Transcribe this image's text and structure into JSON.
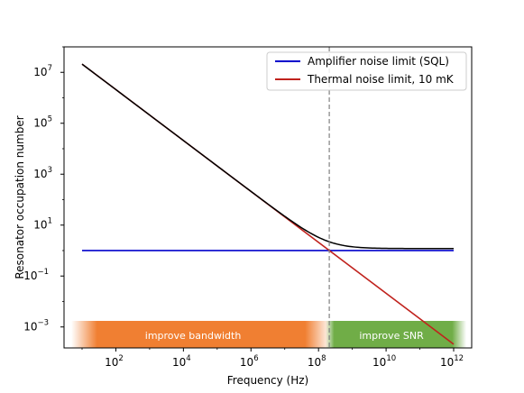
{
  "chart_data": {
    "type": "line",
    "xlabel": "Frequency (Hz)",
    "ylabel": "Resonator occupation number",
    "xscale": "log",
    "yscale": "log",
    "xlim": [
      10.0,
      1000000000000.0
    ],
    "ylim": [
      0.00015,
      100000000.0
    ],
    "x_ticks": [
      {
        "value": 100.0,
        "base": "10",
        "exp": "2"
      },
      {
        "value": 10000.0,
        "base": "10",
        "exp": "4"
      },
      {
        "value": 1000000.0,
        "base": "10",
        "exp": "6"
      },
      {
        "value": 100000000.0,
        "base": "10",
        "exp": "8"
      },
      {
        "value": 10000000000.0,
        "base": "10",
        "exp": "10"
      },
      {
        "value": 1000000000000.0,
        "base": "10",
        "exp": "12"
      }
    ],
    "y_ticks": [
      {
        "value": 0.001,
        "base": "10",
        "exp": "−3"
      },
      {
        "value": 0.1,
        "base": "10",
        "exp": "−1"
      },
      {
        "value": 10.0,
        "base": "10",
        "exp": "1"
      },
      {
        "value": 1000.0,
        "base": "10",
        "exp": "3"
      },
      {
        "value": 100000.0,
        "base": "10",
        "exp": "5"
      },
      {
        "value": 10000000.0,
        "base": "10",
        "exp": "7"
      }
    ],
    "series": [
      {
        "name": "Amplifier noise limit (SQL)",
        "color": "#0000cc",
        "x": [
          10.0,
          1000000000000.0
        ],
        "y": [
          1.0,
          1.0
        ]
      },
      {
        "name": "Thermal noise limit, 10 mK",
        "color": "#c0221d",
        "x": [
          10.0,
          1000000000000.0
        ],
        "y": [
          21000000.0,
          0.00021
        ]
      },
      {
        "color": "#000000",
        "x": [
          10.0,
          1000000000000.0
        ],
        "y": [
          21000000.0,
          1.2
        ]
      }
    ],
    "crossover_line": {
      "x": 208000000.0,
      "color": "#808080",
      "style": "dashed"
    },
    "regions": [
      {
        "label": "improve bandwidth",
        "x_range": [
          10.0,
          208000000.0
        ],
        "color": "#f07f32"
      },
      {
        "label": "improve SNR",
        "x_range": [
          208000000.0,
          1000000000000.0
        ],
        "color": "#70ad47"
      }
    ],
    "legend": {
      "position": "top-right"
    },
    "grid": false
  }
}
